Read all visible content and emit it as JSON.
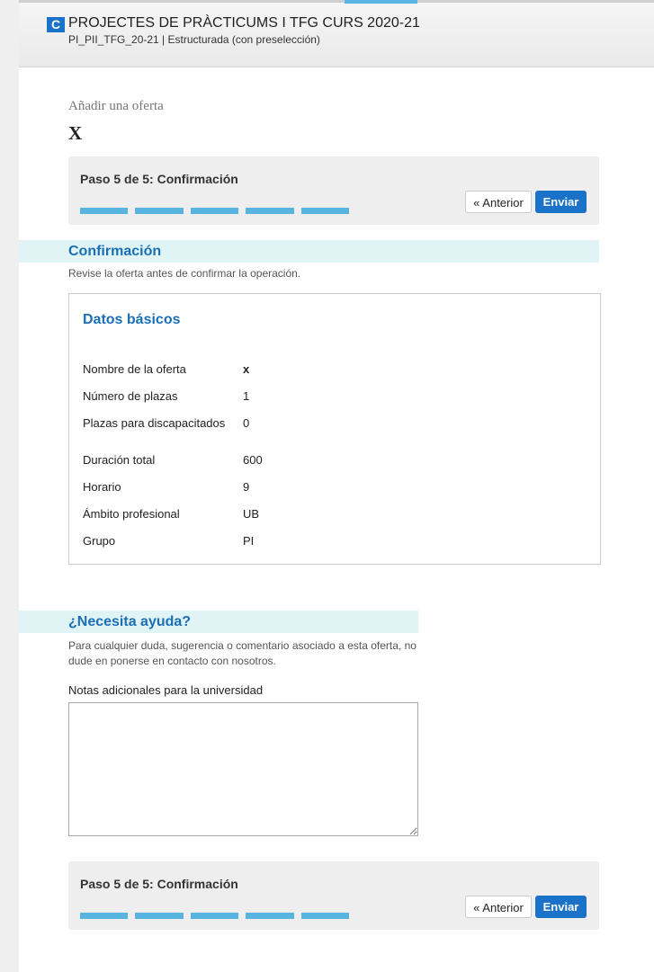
{
  "header": {
    "badge": "C",
    "title": "PROJECTES DE PRÀCTICUMS I TFG CURS 2020-21",
    "subtitle": "PI_PII_TFG_20-21 | Estructurada (con preselección)"
  },
  "page_title": "Añadir una oferta",
  "close": "X",
  "steps": {
    "label": "Paso 5 de 5: Confirmación",
    "previous": "« Anterior",
    "submit": "Enviar"
  },
  "confirmation": {
    "heading": "Confirmación",
    "description": "Revise la oferta antes de confirmar la operación.",
    "panel": {
      "title": "Datos básicos",
      "rows": [
        [
          "Nombre de la oferta",
          "x"
        ],
        [
          "Número de plazas",
          "1"
        ],
        [
          "Plazas para discapacitados",
          "0"
        ],
        [
          "Duración total",
          "600"
        ],
        [
          "Horario",
          "9"
        ],
        [
          "Ámbito profesional",
          "UB"
        ],
        [
          "Grupo",
          "PI"
        ]
      ]
    }
  },
  "help": {
    "heading": "¿Necesita ayuda?",
    "description": "Para cualquier duda, sugerencia o comentario asociado a esta oferta, no dude en ponerse en contacto con nosotros.",
    "notes_label": "Notas adicionales para la universidad"
  }
}
